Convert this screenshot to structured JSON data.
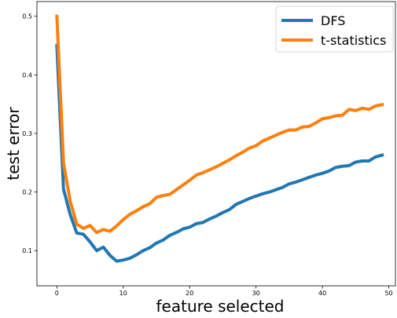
{
  "chart_data": {
    "type": "line",
    "title": "",
    "xlabel": "feature selected",
    "ylabel": "test error",
    "xlim": [
      -3,
      51
    ],
    "ylim": [
      0.04,
      0.525
    ],
    "x_ticks": [
      0,
      10,
      20,
      30,
      40,
      50
    ],
    "y_ticks": [
      0.1,
      0.2,
      0.3,
      0.4,
      0.5
    ],
    "x_tick_labels": [
      "0",
      "10",
      "20",
      "30",
      "40",
      "50"
    ],
    "y_tick_labels": [
      "0.1",
      "0.2",
      "0.3",
      "0.4",
      "0.5"
    ],
    "grid": false,
    "legend_position": "top-right",
    "x": [
      0,
      1,
      2,
      3,
      4,
      5,
      6,
      7,
      8,
      9,
      10,
      11,
      12,
      13,
      14,
      15,
      16,
      17,
      18,
      19,
      20,
      21,
      22,
      23,
      24,
      25,
      26,
      27,
      28,
      29,
      30,
      31,
      32,
      33,
      34,
      35,
      36,
      37,
      38,
      39,
      40,
      41,
      42,
      43,
      44,
      45,
      46,
      47,
      48,
      49
    ],
    "series": [
      {
        "name": "DFS",
        "color": "#1f77b4",
        "values": [
          0.45,
          0.205,
          0.162,
          0.13,
          0.128,
          0.115,
          0.1,
          0.106,
          0.092,
          0.082,
          0.084,
          0.087,
          0.093,
          0.1,
          0.105,
          0.113,
          0.118,
          0.126,
          0.131,
          0.137,
          0.14,
          0.146,
          0.148,
          0.154,
          0.159,
          0.165,
          0.17,
          0.179,
          0.184,
          0.189,
          0.193,
          0.197,
          0.2,
          0.204,
          0.208,
          0.214,
          0.217,
          0.221,
          0.225,
          0.229,
          0.232,
          0.236,
          0.242,
          0.244,
          0.245,
          0.251,
          0.253,
          0.253,
          0.26,
          0.263
        ]
      },
      {
        "name": "t-statistics",
        "color": "#ff7f0e",
        "values": [
          0.5,
          0.25,
          0.185,
          0.145,
          0.138,
          0.143,
          0.131,
          0.136,
          0.133,
          0.142,
          0.153,
          0.162,
          0.168,
          0.175,
          0.18,
          0.191,
          0.194,
          0.196,
          0.204,
          0.212,
          0.22,
          0.229,
          0.233,
          0.238,
          0.243,
          0.249,
          0.255,
          0.262,
          0.268,
          0.275,
          0.279,
          0.287,
          0.292,
          0.297,
          0.302,
          0.306,
          0.306,
          0.311,
          0.312,
          0.318,
          0.325,
          0.327,
          0.33,
          0.331,
          0.341,
          0.339,
          0.343,
          0.341,
          0.347,
          0.349
        ]
      }
    ]
  }
}
